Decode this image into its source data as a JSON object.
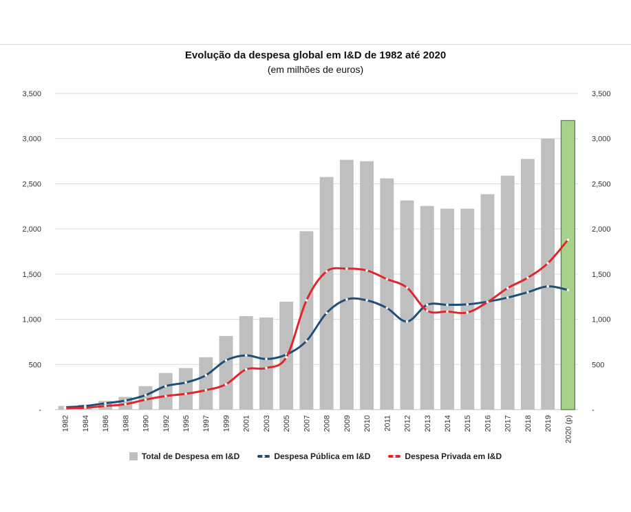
{
  "chart_data": {
    "type": "bar+line",
    "title": "Evolução da despesa global em I&D de 1982 até 2020",
    "subtitle": "(em milhões de euros)",
    "categories": [
      "1982",
      "1984",
      "1986",
      "1988",
      "1990",
      "1992",
      "1995",
      "1997",
      "1999",
      "2001",
      "2003",
      "2005",
      "2007",
      "2008",
      "2009",
      "2010",
      "2011",
      "2012",
      "2013",
      "2014",
      "2015",
      "2016",
      "2017",
      "2018",
      "2019",
      "2020 (p)"
    ],
    "y_ticks": [
      "-",
      "500",
      "1,000",
      "1,500",
      "2,000",
      "2,500",
      "3,000",
      "3,500"
    ],
    "ylim": [
      0,
      3500
    ],
    "grid": true,
    "secondary_axis_mirrored": true,
    "legend_position": "bottom",
    "series": [
      {
        "name": "Total de Despesa em I&D",
        "kind": "bar",
        "color": "#bfbfbf",
        "highlight_last": {
          "color": "#a9d18e",
          "border": "#4e7f2a"
        },
        "values": [
          40,
          55,
          95,
          140,
          260,
          405,
          460,
          580,
          815,
          1035,
          1020,
          1195,
          1975,
          2575,
          2765,
          2750,
          2560,
          2315,
          2255,
          2225,
          2225,
          2385,
          2590,
          2775,
          3000,
          3200
        ]
      },
      {
        "name": "Despesa Pública em I&D",
        "kind": "line",
        "color": "#1f4e79",
        "values": [
          25,
          40,
          70,
          100,
          160,
          260,
          300,
          380,
          545,
          600,
          560,
          610,
          760,
          1070,
          1220,
          1210,
          1125,
          975,
          1160,
          1160,
          1165,
          1195,
          1240,
          1300,
          1365,
          1325
        ]
      },
      {
        "name": "Despesa Privada em I&D",
        "kind": "line",
        "color": "#e0262b",
        "values": [
          15,
          20,
          40,
          60,
          110,
          150,
          175,
          215,
          280,
          445,
          460,
          580,
          1210,
          1530,
          1560,
          1540,
          1445,
          1350,
          1095,
          1085,
          1075,
          1190,
          1345,
          1460,
          1620,
          1880
        ]
      }
    ]
  }
}
